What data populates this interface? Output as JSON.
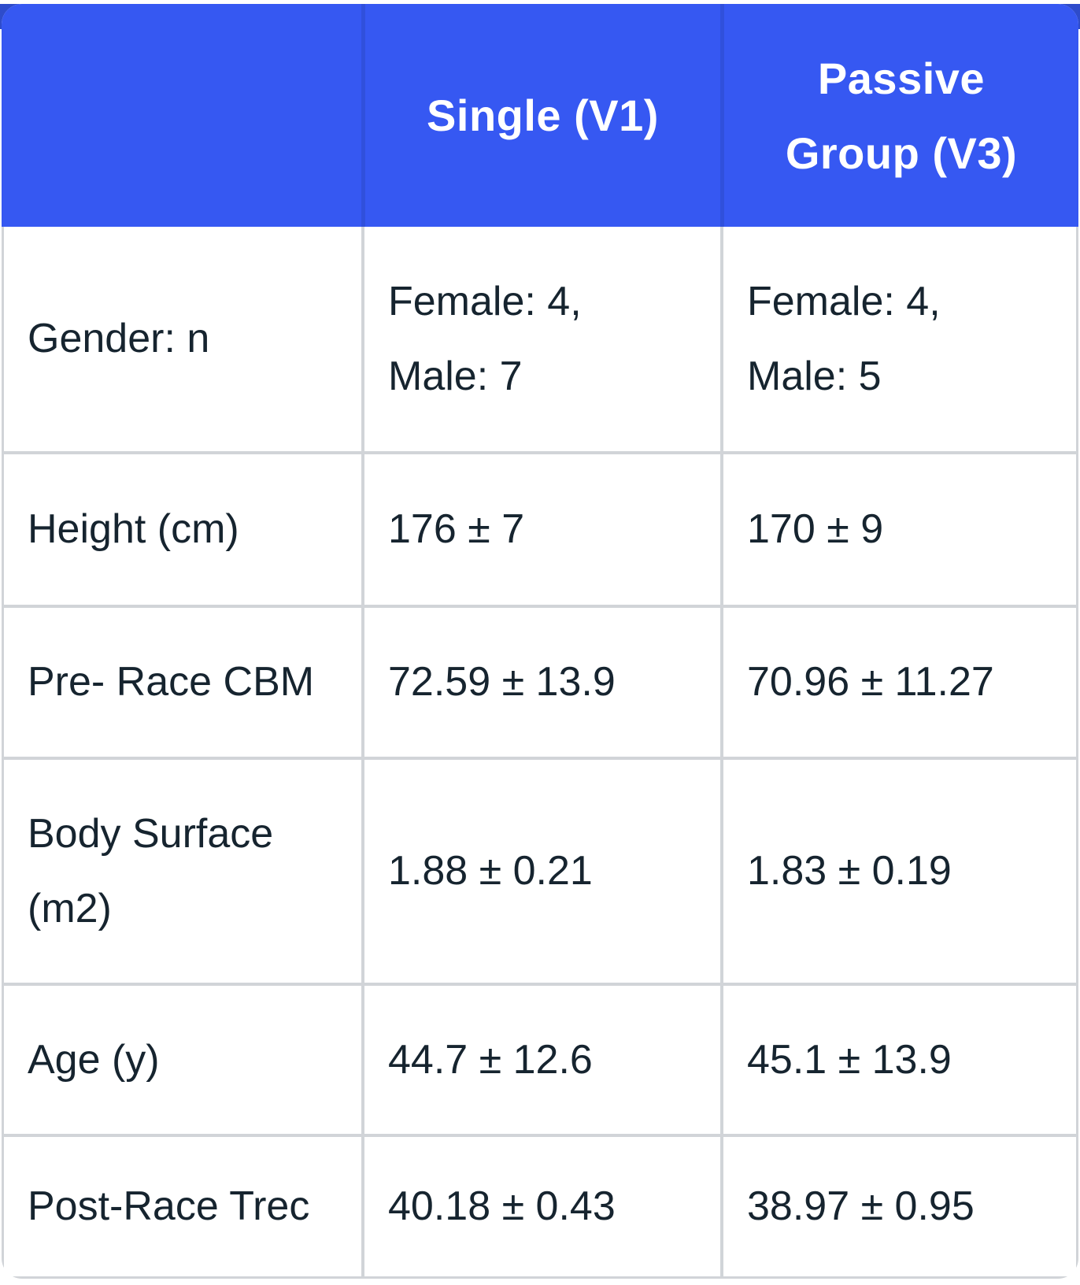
{
  "theme": {
    "header_bg": "#3658F2",
    "header_divider": "#3050DC",
    "top_accent_bar": "#2E4CCB",
    "grid_border": "#D1D4D8",
    "body_text": "#16242F",
    "header_text": "#FFFFFF"
  },
  "table": {
    "columns": [
      {
        "label": ""
      },
      {
        "label": "Single (V1)"
      },
      {
        "label": "Passive\nGroup (V3)"
      }
    ],
    "rows": [
      {
        "label": "Gender: n",
        "single": "Female: 4,\nMale: 7",
        "passive": "Female: 4,\nMale: 5"
      },
      {
        "label": "Height (cm)",
        "single": "176 ± 7",
        "passive": "170 ± 9"
      },
      {
        "label": "Pre- Race CBM",
        "single": "72.59 ± 13.9",
        "passive": "70.96 ± 11.27"
      },
      {
        "label": "Body Surface\n(m2)",
        "single": "1.88 ± 0.21",
        "passive": "1.83 ± 0.19"
      },
      {
        "label": "Age (y)",
        "single": "44.7 ± 12.6",
        "passive": "45.1 ± 13.9"
      },
      {
        "label": "Post-Race Trec",
        "single": "40.18 ± 0.43",
        "passive": "38.97 ± 0.95"
      }
    ]
  },
  "chart_data": {
    "type": "table",
    "columns": [
      "",
      "Single (V1)",
      "Passive Group (V3)"
    ],
    "rows": [
      [
        "Gender: n",
        "Female: 4, Male: 7",
        "Female: 4, Male: 5"
      ],
      [
        "Height (cm)",
        "176 ± 7",
        "170 ± 9"
      ],
      [
        "Pre- Race CBM",
        "72.59 ± 13.9",
        "70.96 ± 11.27"
      ],
      [
        "Body Surface (m2)",
        "1.88 ± 0.21",
        "1.83 ± 0.19"
      ],
      [
        "Age (y)",
        "44.7 ± 12.6",
        "45.1 ± 13.9"
      ],
      [
        "Post-Race Trec",
        "40.18 ± 0.43",
        "38.97 ± 0.95"
      ]
    ]
  }
}
